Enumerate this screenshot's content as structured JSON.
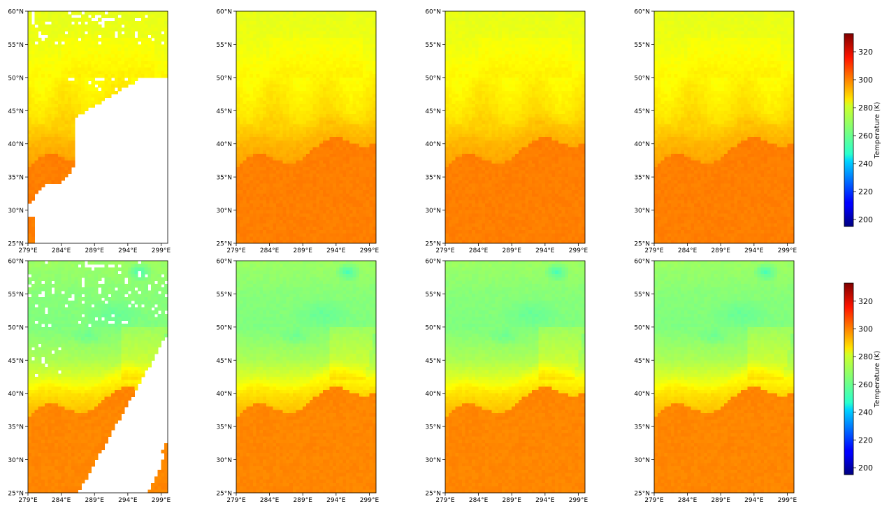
{
  "chart_data": {
    "type": "heatmap",
    "layout": {
      "rows": 2,
      "cols": 4
    },
    "x_axis": {
      "range": [
        279,
        300
      ],
      "ticks": [
        "279°E",
        "284°E",
        "289°E",
        "294°E",
        "299°E"
      ]
    },
    "y_axis": {
      "range": [
        25,
        60
      ],
      "ticks": [
        "25°N",
        "30°N",
        "35°N",
        "40°N",
        "45°N",
        "50°N",
        "55°N",
        "60°N"
      ]
    },
    "colorbars": [
      {
        "label": "Temperature (K)",
        "range": [
          195,
          333
        ],
        "ticks": [
          "200",
          "220",
          "240",
          "260",
          "280",
          "300",
          "320"
        ],
        "colormap": "jet"
      },
      {
        "label": "Temperature (K)",
        "range": [
          195,
          333
        ],
        "ticks": [
          "200",
          "220",
          "240",
          "260",
          "280",
          "300",
          "320"
        ],
        "colormap": "jet"
      }
    ],
    "panels": [
      {
        "row": 1,
        "col": 1,
        "field": "row1",
        "missing": "row1-gaps"
      },
      {
        "row": 1,
        "col": 2,
        "field": "row1",
        "missing": "none"
      },
      {
        "row": 1,
        "col": 3,
        "field": "row1",
        "missing": "none"
      },
      {
        "row": 1,
        "col": 4,
        "field": "row1",
        "missing": "none"
      },
      {
        "row": 2,
        "col": 1,
        "field": "row2",
        "missing": "row2-gaps"
      },
      {
        "row": 2,
        "col": 2,
        "field": "row2",
        "missing": "none"
      },
      {
        "row": 2,
        "col": 3,
        "field": "row2",
        "missing": "none"
      },
      {
        "row": 2,
        "col": 4,
        "field": "row2",
        "missing": "none"
      }
    ],
    "fields": {
      "row1": {
        "description_levels_K": {
          "north": 278,
          "mid": 283,
          "south": 298
        },
        "anchors": [
          {
            "lat": 60,
            "temp": 278
          },
          {
            "lat": 55,
            "temp": 279
          },
          {
            "lat": 50,
            "temp": 282
          },
          {
            "lat": 45,
            "temp": 285
          },
          {
            "lat": 40,
            "temp": 290
          },
          {
            "lat": 35,
            "temp": 297
          },
          {
            "lat": 30,
            "temp": 298
          },
          {
            "lat": 25,
            "temp": 299
          }
        ]
      },
      "row2": {
        "description_levels_K": {
          "north": 264,
          "mid": 270,
          "south": 297
        },
        "anchors": [
          {
            "lat": 60,
            "temp": 268
          },
          {
            "lat": 55,
            "temp": 265
          },
          {
            "lat": 50,
            "temp": 264
          },
          {
            "lat": 45,
            "temp": 270
          },
          {
            "lat": 40,
            "temp": 283
          },
          {
            "lat": 35,
            "temp": 296
          },
          {
            "lat": 30,
            "temp": 297
          },
          {
            "lat": 25,
            "temp": 298
          }
        ]
      }
    }
  }
}
